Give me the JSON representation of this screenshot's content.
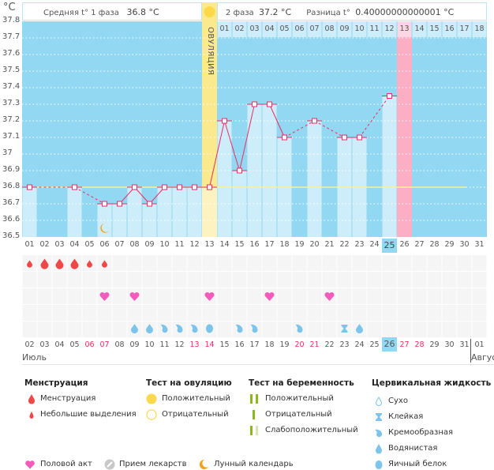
{
  "header": {
    "unit": "°C",
    "phase1_label": "Средняя t° 1 фаза",
    "phase1_value": "36.8 °C",
    "phase2_label": "2 фаза",
    "phase2_value": "37.2 °C",
    "diff_label": "Разница t°",
    "diff_value": "0.40000000000001 °C",
    "ovulation_label": "ОВУЛЯЦИЯ",
    "phase2_days": [
      "01",
      "02",
      "03",
      "04",
      "05",
      "06",
      "07",
      "08",
      "09",
      "10",
      "11",
      "12",
      "13",
      "14",
      "15",
      "16",
      "17",
      "18"
    ]
  },
  "chart_data": {
    "type": "line",
    "title": "",
    "ylabel": "°C",
    "ylim": [
      36.5,
      37.8
    ],
    "yticks": [
      "37.8",
      "37.7",
      "37.6",
      "37.5",
      "37.4",
      "37.3",
      "37.2",
      "37.1",
      "37",
      "36.9",
      "36.8",
      "36.7",
      "36.6",
      "36.5"
    ],
    "cycle_days": [
      "01",
      "02",
      "03",
      "04",
      "05",
      "06",
      "07",
      "08",
      "09",
      "10",
      "11",
      "12",
      "13",
      "14",
      "15",
      "16",
      "17",
      "18",
      "19",
      "20",
      "21",
      "22",
      "23",
      "24",
      "25",
      "26",
      "27",
      "28",
      "29",
      "30",
      "31"
    ],
    "temperatures": [
      36.8,
      null,
      null,
      36.8,
      null,
      36.7,
      36.7,
      36.8,
      36.7,
      36.8,
      36.8,
      36.8,
      36.8,
      37.2,
      36.9,
      37.3,
      37.3,
      37.1,
      null,
      37.2,
      null,
      37.1,
      37.1,
      null,
      37.35,
      null,
      null,
      null,
      null,
      null,
      null
    ],
    "cover_line": 36.8,
    "ovulation_day": 13,
    "highlighted_day": 25,
    "expected_period_day": 26,
    "moon_day": 6,
    "grid": true,
    "colors": {
      "background": "#92d8f2",
      "bar": "#cdedfb",
      "line": "#ee2b64",
      "cover": "#fff08a",
      "ovulation": "#fbe98e",
      "period": "#fbaec4"
    }
  },
  "calendar": {
    "dates": [
      "02",
      "03",
      "04",
      "05",
      "06",
      "07",
      "08",
      "09",
      "10",
      "11",
      "12",
      "13",
      "14",
      "15",
      "16",
      "17",
      "18",
      "19",
      "20",
      "21",
      "22",
      "23",
      "24",
      "25",
      "26",
      "27",
      "28",
      "29",
      "30",
      "31",
      "01"
    ],
    "weekend_dates_idx": [
      4,
      5,
      11,
      12,
      18,
      19,
      25,
      26
    ],
    "today_idx": 24,
    "month1": "Июль",
    "month2": "Август",
    "menstruation": [
      "small",
      "full",
      "full",
      "full",
      "small",
      "small",
      null,
      null,
      null,
      null,
      null,
      null,
      null,
      null,
      null,
      null,
      null,
      null,
      null,
      null,
      null,
      null,
      null,
      null,
      null,
      null,
      null,
      null,
      null,
      null,
      null
    ],
    "intercourse_idx": [
      5,
      7,
      12,
      16,
      20
    ],
    "cervical_fluid": [
      null,
      null,
      null,
      null,
      null,
      null,
      null,
      "watery",
      "watery",
      "creamy",
      "creamy",
      "creamy",
      "eggwhite",
      null,
      "creamy",
      "creamy",
      null,
      null,
      "creamy",
      null,
      null,
      "sticky",
      "watery",
      null,
      null,
      null,
      null,
      null,
      null,
      null,
      null
    ]
  },
  "legend": {
    "menstruation": {
      "title": "Менструация",
      "items": [
        "Менструация",
        "Небольшие выделения"
      ]
    },
    "ovulation_test": {
      "title": "Тест на овуляцию",
      "items": [
        "Положительный",
        "Отрицательный"
      ]
    },
    "pregnancy_test": {
      "title": "Тест на беременность",
      "items": [
        "Положительный",
        "Отрицательный",
        "Слабоположительный"
      ]
    },
    "cervical": {
      "title": "Цервикальная жидкость",
      "items": [
        "Сухо",
        "Клейкая",
        "Кремообразная",
        "Водянистая",
        "Яичный белок"
      ]
    },
    "other": [
      "Половой акт",
      "Прием лекарств",
      "Лунный календарь"
    ]
  }
}
